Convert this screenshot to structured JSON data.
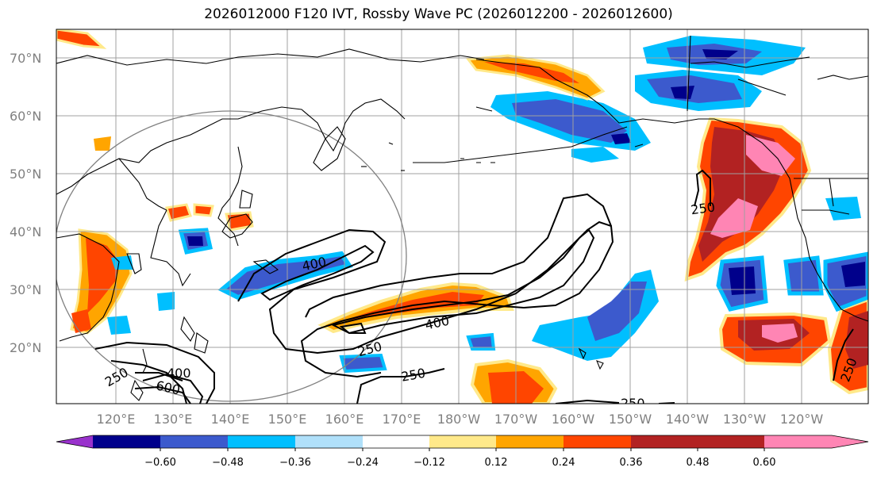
{
  "title": "2026012000 F120 IVT, Rossby Wave PC (2026012200 - 2026012600)",
  "lat_labels": [
    "70°N",
    "60°N",
    "50°N",
    "40°N",
    "30°N",
    "20°N"
  ],
  "lon_labels": [
    "120°E",
    "130°E",
    "140°E",
    "150°E",
    "160°E",
    "170°E",
    "180°W",
    "170°W",
    "160°W",
    "150°W",
    "140°W",
    "130°W",
    "120°W"
  ],
  "contour_labels": [
    "400",
    "400",
    "250",
    "250",
    "400",
    "600",
    "250",
    "250",
    "250",
    "250"
  ],
  "colorbar": {
    "ticks": [
      "−0.60",
      "−0.48",
      "−0.36",
      "−0.24",
      "−0.12",
      "0.12",
      "0.24",
      "0.36",
      "0.48",
      "0.60"
    ],
    "colors": [
      "#9932cc",
      "#00008b",
      "#3c5acd",
      "#00bfff",
      "#b0e0fa",
      "#ffffff",
      "#ffe98a",
      "#ffa500",
      "#ff4500",
      "#b22222",
      "#ff85b4"
    ]
  }
}
